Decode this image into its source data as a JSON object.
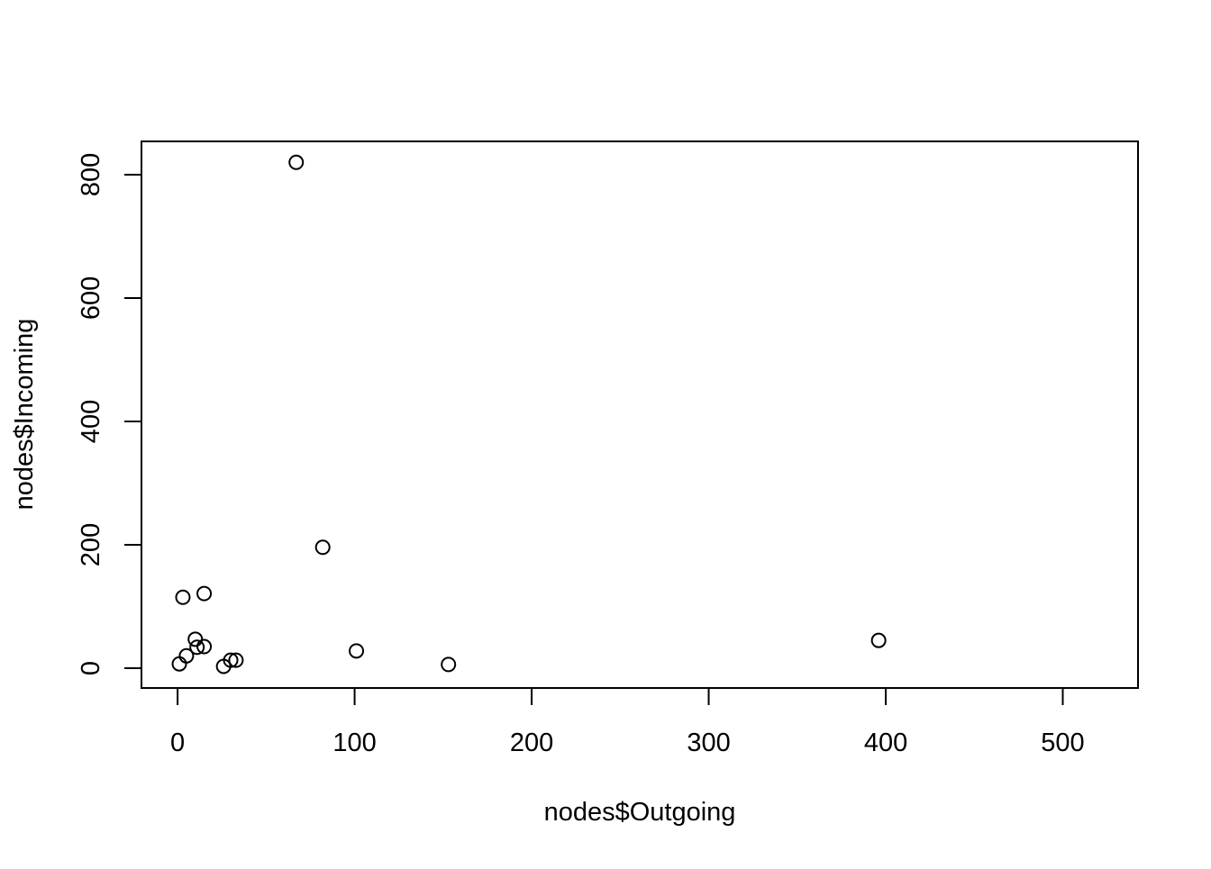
{
  "chart_data": {
    "type": "scatter",
    "x_label": "nodes$Outgoing",
    "y_label": "nodes$Incoming",
    "x": [
      67,
      82,
      3,
      15,
      10,
      11,
      15,
      5,
      1,
      26,
      30,
      33,
      101,
      153,
      396
    ],
    "y": [
      820,
      196,
      115,
      121,
      47,
      34,
      35,
      20,
      7,
      3,
      13,
      13,
      28,
      6,
      45
    ],
    "color": "#000000",
    "xlim": [
      -20.4,
      542.5
    ],
    "ylim": [
      -32.1,
      854.0
    ],
    "xticks": [
      0,
      100,
      200,
      300,
      400,
      500
    ],
    "yticks": [
      0,
      200,
      400,
      600,
      800
    ]
  }
}
